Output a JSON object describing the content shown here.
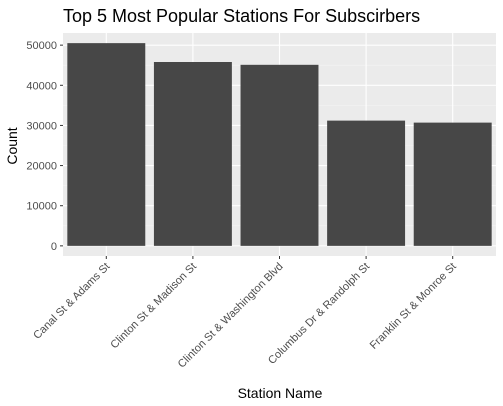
{
  "chart_data": {
    "type": "bar",
    "title": "Top 5 Most Popular Stations For Subscirbers",
    "xlabel": "Station Name",
    "ylabel": "Count",
    "categories": [
      "Canal St & Adams St",
      "Clinton St & Madison St",
      "Clinton St & Washington Blvd",
      "Columbus Dr & Randolph St",
      "Franklin St & Monroe St"
    ],
    "values": [
      50500,
      45800,
      45100,
      31200,
      30700
    ],
    "ylim": [
      -2525,
      53025
    ],
    "yticks": [
      0,
      10000,
      20000,
      30000,
      40000,
      50000
    ],
    "ytick_labels": [
      "0",
      "10000",
      "20000",
      "30000",
      "40000",
      "50000"
    ],
    "grid": true,
    "legend": "none",
    "colors": {
      "bar": "#474747",
      "panel": "#ebebeb",
      "grid_major": "#ffffff",
      "grid_minor": "#f4f4f4",
      "tick": "#333333"
    }
  }
}
